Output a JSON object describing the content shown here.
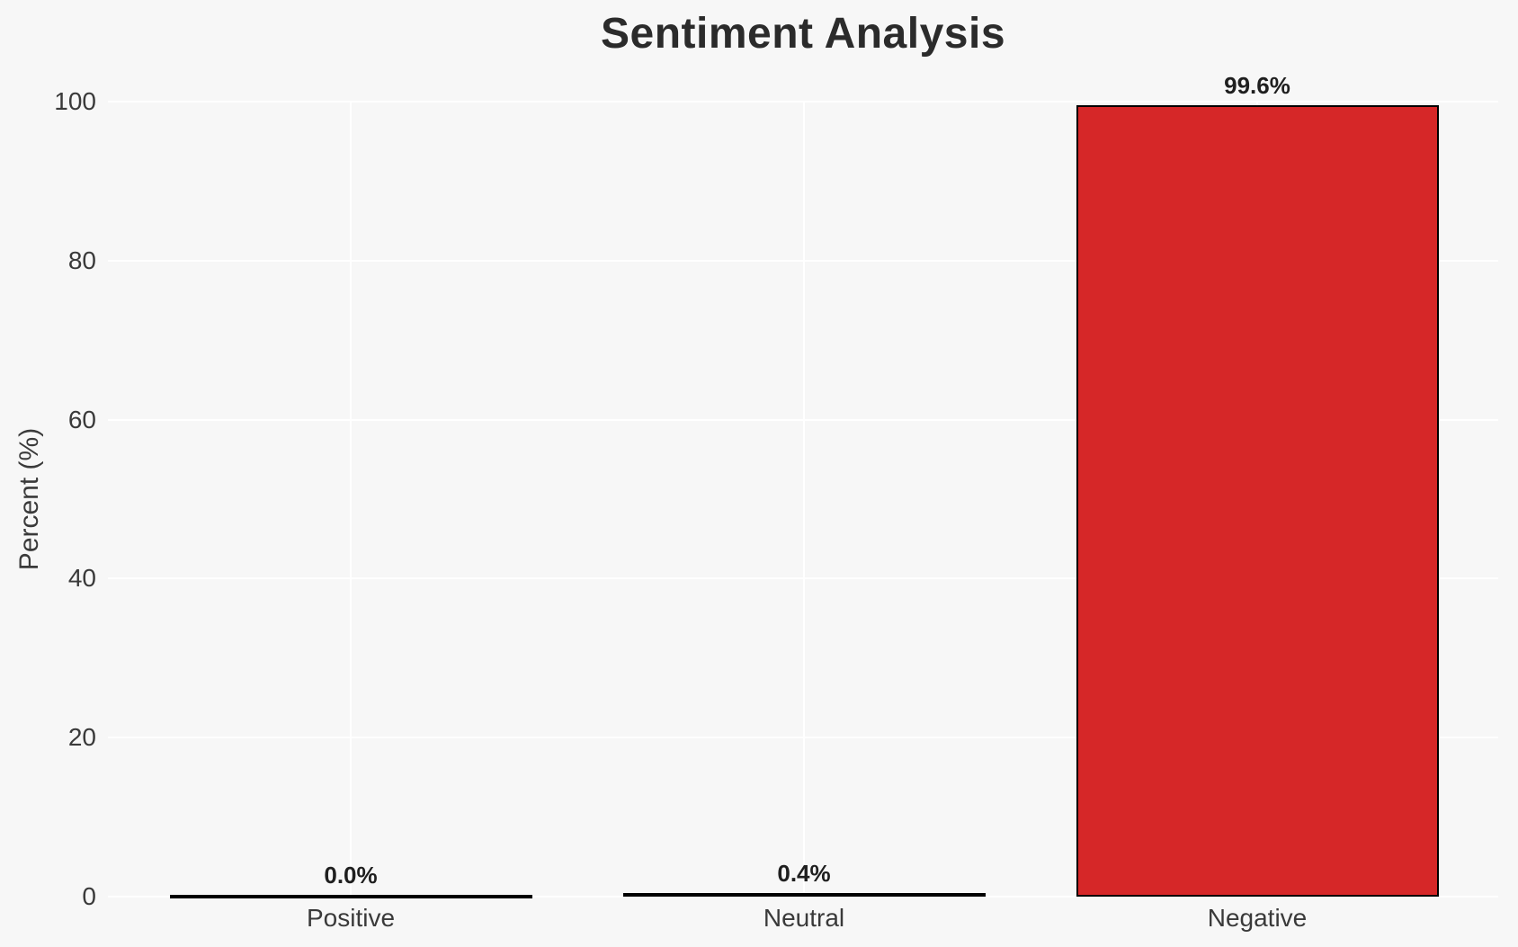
{
  "chart_data": {
    "type": "bar",
    "title": "Sentiment Analysis",
    "xlabel": "",
    "ylabel": "Percent (%)",
    "categories": [
      "Positive",
      "Neutral",
      "Negative"
    ],
    "values": [
      0.0,
      0.4,
      99.6
    ],
    "value_labels": [
      "0.0%",
      "0.4%",
      "99.6%"
    ],
    "yticks": [
      0,
      20,
      40,
      60,
      80,
      100
    ],
    "ylim": [
      0,
      100
    ],
    "grid": true,
    "bar_width_fraction": 0.8,
    "colors": {
      "bar_fill": "#d62728",
      "bar_edge": "#000000",
      "background": "#f7f7f7",
      "gridline": "#ffffff",
      "title_text": "#2b2b2b",
      "tick_text": "#3a3a3a",
      "value_label_text": "#1f1f1f"
    }
  }
}
